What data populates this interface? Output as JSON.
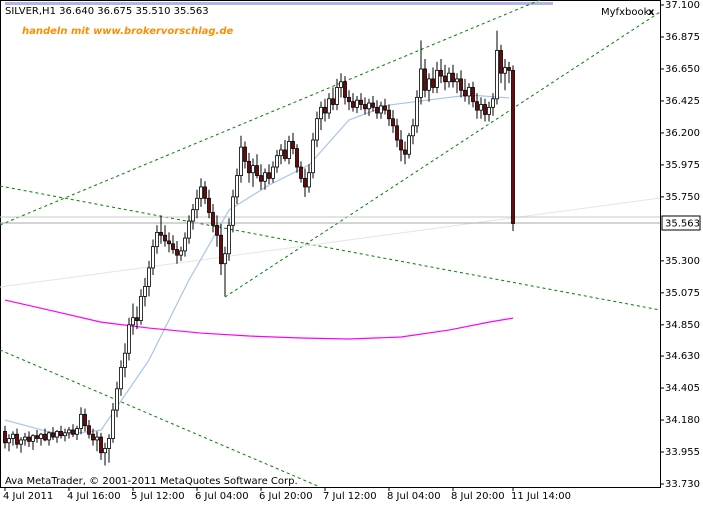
{
  "chart_data": {
    "type": "candlestick",
    "title": "SILVER,H1 36.640 36.675 35.510 35.563",
    "watermark": "handeln mit www.brokervorschlag.de",
    "brand": "Myfxbook",
    "close_button": "x",
    "footer": "Ava MetaTrader, © 2001-2011 MetaQuotes Software Corp.",
    "price_label": "35.563",
    "up_color": "#ffffff",
    "down_color": "#6b0a0a",
    "ylim": [
      33.73,
      37.1
    ],
    "yticks": [
      {
        "value": 37.1,
        "label": "37.100"
      },
      36.875,
      {
        "value": 36.65,
        "label": "36.650"
      },
      36.425,
      {
        "value": 36.2,
        "label": "36.200"
      },
      35.975,
      {
        "value": 35.75,
        "label": "35.750"
      },
      {
        "value": 35.3,
        "label": "35.300"
      },
      35.075,
      {
        "value": 34.85,
        "label": "34.850"
      },
      {
        "value": 34.63,
        "label": "34.630"
      },
      34.405,
      {
        "value": 34.18,
        "label": "34.180"
      },
      33.955,
      {
        "value": 33.73,
        "label": "33.730"
      }
    ],
    "categories": [
      "4 Jul 2011",
      null,
      null,
      null,
      null,
      null,
      null,
      null,
      null,
      null,
      null,
      null,
      null,
      null,
      null,
      null,
      "4 Jul 16:00",
      null,
      null,
      null,
      null,
      null,
      null,
      null,
      null,
      null,
      null,
      null,
      null,
      null,
      null,
      null,
      "5 Jul 12:00",
      null,
      null,
      null,
      null,
      null,
      null,
      null,
      null,
      null,
      null,
      null,
      null,
      null,
      null,
      null,
      "6 Jul 04:00",
      null,
      null,
      null,
      null,
      null,
      null,
      null,
      null,
      null,
      null,
      null,
      null,
      null,
      null,
      null,
      "6 Jul 20:00",
      null,
      null,
      null,
      null,
      null,
      null,
      null,
      null,
      null,
      null,
      null,
      null,
      null,
      null,
      null,
      "7 Jul 12:00",
      null,
      null,
      null,
      null,
      null,
      null,
      null,
      null,
      null,
      null,
      null,
      null,
      null,
      null,
      null,
      "8 Jul 04:00",
      null,
      null,
      null,
      null,
      null,
      null,
      null,
      null,
      null,
      null,
      null,
      null,
      null,
      null,
      null,
      "8 Jul 20:00",
      null,
      null,
      null,
      null,
      null,
      null,
      null,
      null,
      null,
      null,
      null,
      null,
      null,
      null,
      "11 Jul 14:00"
    ],
    "ohlc": [
      [
        34.1,
        34.14,
        33.98,
        34.02
      ],
      [
        34.02,
        34.08,
        33.96,
        34.05
      ],
      [
        34.05,
        34.1,
        34.0,
        34.08
      ],
      [
        34.08,
        34.12,
        33.98,
        34.01
      ],
      [
        34.01,
        34.06,
        33.95,
        34.04
      ],
      [
        34.04,
        34.09,
        34.0,
        34.06
      ],
      [
        34.06,
        34.1,
        33.99,
        34.03
      ],
      [
        34.03,
        34.08,
        33.97,
        34.07
      ],
      [
        34.07,
        34.11,
        34.02,
        34.05
      ],
      [
        34.05,
        34.09,
        34.0,
        34.08
      ],
      [
        34.08,
        34.12,
        34.03,
        34.04
      ],
      [
        34.04,
        34.1,
        34.0,
        34.09
      ],
      [
        34.09,
        34.13,
        34.04,
        34.06
      ],
      [
        34.06,
        34.11,
        34.02,
        34.1
      ],
      [
        34.1,
        34.14,
        34.05,
        34.07
      ],
      [
        34.07,
        34.12,
        34.03,
        34.09
      ],
      [
        34.09,
        34.13,
        34.05,
        34.11
      ],
      [
        34.11,
        34.15,
        34.06,
        34.08
      ],
      [
        34.08,
        34.14,
        34.04,
        34.12
      ],
      [
        34.12,
        34.27,
        34.08,
        34.22
      ],
      [
        34.22,
        34.26,
        34.1,
        34.14
      ],
      [
        34.14,
        34.18,
        34.05,
        34.08
      ],
      [
        34.08,
        34.12,
        34.0,
        34.04
      ],
      [
        34.04,
        34.1,
        33.96,
        34.06
      ],
      [
        34.06,
        34.09,
        33.9,
        33.95
      ],
      [
        33.95,
        34.02,
        33.86,
        33.98
      ],
      [
        33.98,
        34.08,
        33.88,
        34.05
      ],
      [
        34.05,
        34.3,
        34.02,
        34.25
      ],
      [
        34.25,
        34.45,
        34.2,
        34.4
      ],
      [
        34.4,
        34.6,
        34.35,
        34.55
      ],
      [
        34.55,
        34.72,
        34.48,
        34.65
      ],
      [
        34.65,
        34.9,
        34.6,
        34.85
      ],
      [
        34.85,
        35.0,
        34.78,
        34.9
      ],
      [
        34.9,
        34.98,
        34.82,
        34.88
      ],
      [
        34.88,
        35.1,
        34.85,
        35.05
      ],
      [
        35.05,
        35.18,
        34.98,
        35.12
      ],
      [
        35.12,
        35.3,
        35.05,
        35.25
      ],
      [
        35.25,
        35.45,
        35.2,
        35.4
      ],
      [
        35.4,
        35.55,
        35.35,
        35.5
      ],
      [
        35.5,
        35.62,
        35.42,
        35.48
      ],
      [
        35.48,
        35.55,
        35.4,
        35.44
      ],
      [
        35.44,
        35.5,
        35.36,
        35.42
      ],
      [
        35.42,
        35.48,
        35.35,
        35.38
      ],
      [
        35.38,
        35.44,
        35.28,
        35.34
      ],
      [
        35.34,
        35.4,
        35.3,
        35.37
      ],
      [
        35.37,
        35.5,
        35.33,
        35.46
      ],
      [
        35.46,
        35.62,
        35.42,
        35.58
      ],
      [
        35.58,
        35.7,
        35.52,
        35.66
      ],
      [
        35.66,
        35.8,
        35.6,
        35.74
      ],
      [
        35.74,
        35.88,
        35.68,
        35.82
      ],
      [
        35.82,
        35.86,
        35.7,
        35.74
      ],
      [
        35.74,
        35.8,
        35.6,
        35.64
      ],
      [
        35.64,
        35.7,
        35.5,
        35.55
      ],
      [
        35.55,
        35.62,
        35.4,
        35.48
      ],
      [
        35.48,
        35.56,
        35.2,
        35.28
      ],
      [
        35.28,
        35.4,
        35.05,
        35.35
      ],
      [
        35.35,
        35.6,
        35.3,
        35.55
      ],
      [
        35.55,
        35.8,
        35.5,
        35.75
      ],
      [
        35.75,
        35.95,
        35.7,
        35.9
      ],
      [
        35.9,
        36.18,
        35.85,
        36.1
      ],
      [
        36.1,
        36.14,
        35.95,
        36.0
      ],
      [
        36.0,
        36.06,
        35.85,
        35.92
      ],
      [
        35.92,
        36.02,
        35.82,
        35.97
      ],
      [
        35.97,
        36.05,
        35.88,
        35.9
      ],
      [
        35.9,
        35.98,
        35.8,
        35.86
      ],
      [
        35.86,
        35.95,
        35.8,
        35.92
      ],
      [
        35.92,
        35.98,
        35.84,
        35.88
      ],
      [
        35.88,
        36.0,
        35.85,
        35.96
      ],
      [
        35.96,
        36.08,
        35.92,
        36.04
      ],
      [
        36.04,
        36.12,
        35.98,
        36.08
      ],
      [
        36.08,
        36.15,
        36.0,
        36.02
      ],
      [
        36.02,
        36.18,
        35.98,
        36.14
      ],
      [
        36.14,
        36.2,
        36.05,
        36.09
      ],
      [
        36.09,
        36.12,
        35.92,
        35.96
      ],
      [
        35.96,
        36.0,
        35.85,
        35.88
      ],
      [
        35.88,
        35.95,
        35.75,
        35.82
      ],
      [
        35.82,
        35.98,
        35.78,
        35.92
      ],
      [
        35.92,
        36.2,
        35.88,
        36.15
      ],
      [
        36.15,
        36.35,
        36.1,
        36.3
      ],
      [
        36.3,
        36.42,
        36.22,
        36.38
      ],
      [
        36.38,
        36.44,
        36.28,
        36.34
      ],
      [
        36.34,
        36.48,
        36.3,
        36.44
      ],
      [
        36.44,
        36.52,
        36.36,
        36.4
      ],
      [
        36.4,
        36.58,
        36.36,
        36.52
      ],
      [
        36.52,
        36.62,
        36.45,
        36.56
      ],
      [
        36.56,
        36.6,
        36.4,
        36.45
      ],
      [
        36.45,
        36.5,
        36.36,
        36.42
      ],
      [
        36.42,
        36.48,
        36.35,
        36.38
      ],
      [
        36.38,
        36.46,
        36.34,
        36.43
      ],
      [
        36.43,
        36.48,
        36.36,
        36.4
      ],
      [
        36.4,
        36.45,
        36.33,
        36.37
      ],
      [
        36.37,
        36.44,
        36.32,
        36.41
      ],
      [
        36.41,
        36.46,
        36.35,
        36.38
      ],
      [
        36.38,
        36.43,
        36.3,
        36.34
      ],
      [
        36.34,
        36.42,
        36.3,
        36.39
      ],
      [
        36.39,
        36.44,
        36.33,
        36.36
      ],
      [
        36.36,
        36.4,
        36.25,
        36.3
      ],
      [
        36.3,
        36.36,
        36.2,
        36.25
      ],
      [
        36.25,
        36.3,
        36.1,
        36.15
      ],
      [
        36.15,
        36.22,
        36.0,
        36.08
      ],
      [
        36.08,
        36.14,
        35.98,
        36.05
      ],
      [
        36.05,
        36.2,
        36.02,
        36.18
      ],
      [
        36.18,
        36.3,
        36.12,
        36.25
      ],
      [
        36.25,
        36.5,
        36.2,
        36.45
      ],
      [
        36.45,
        36.85,
        36.4,
        36.65
      ],
      [
        36.65,
        36.72,
        36.45,
        36.5
      ],
      [
        36.5,
        36.62,
        36.42,
        36.58
      ],
      [
        36.58,
        36.66,
        36.48,
        36.52
      ],
      [
        36.52,
        36.7,
        36.48,
        36.64
      ],
      [
        36.64,
        36.72,
        36.55,
        36.6
      ],
      [
        36.6,
        36.68,
        36.5,
        36.56
      ],
      [
        36.56,
        36.66,
        36.52,
        36.62
      ],
      [
        36.62,
        36.68,
        36.52,
        36.56
      ],
      [
        36.56,
        36.62,
        36.48,
        36.58
      ],
      [
        36.58,
        36.64,
        36.45,
        36.5
      ],
      [
        36.5,
        36.58,
        36.42,
        36.46
      ],
      [
        36.46,
        36.55,
        36.4,
        36.52
      ],
      [
        36.52,
        36.56,
        36.38,
        36.42
      ],
      [
        36.42,
        36.48,
        36.3,
        36.36
      ],
      [
        36.36,
        36.45,
        36.3,
        36.4
      ],
      [
        36.4,
        36.44,
        36.28,
        36.33
      ],
      [
        36.33,
        36.42,
        36.28,
        36.38
      ],
      [
        36.38,
        36.48,
        36.32,
        36.44
      ],
      [
        36.44,
        36.92,
        36.4,
        36.78
      ],
      [
        36.78,
        36.82,
        36.55,
        36.62
      ],
      [
        36.62,
        36.72,
        36.5,
        36.66
      ],
      [
        36.66,
        36.7,
        36.55,
        36.64
      ],
      [
        36.64,
        36.675,
        35.51,
        35.563
      ]
    ],
    "series": [
      {
        "color": "#a9c4ec",
        "x": [
          0,
          14,
          24,
          36,
          46,
          56,
          66,
          76,
          86,
          96,
          106,
          116,
          126
        ],
        "values": [
          34.18,
          34.074,
          34.109,
          34.602,
          35.165,
          35.657,
          35.833,
          35.974,
          36.291,
          36.396,
          36.432,
          36.467,
          36.446
        ]
      },
      {
        "color": "#ff00ff",
        "x": [
          0,
          11,
          24,
          36,
          49,
          61,
          74,
          86,
          99,
          111,
          121,
          127
        ],
        "values": [
          35.024,
          34.954,
          34.869,
          34.827,
          34.792,
          34.771,
          34.757,
          34.75,
          34.764,
          34.813,
          34.869,
          34.897
        ]
      }
    ]
  }
}
